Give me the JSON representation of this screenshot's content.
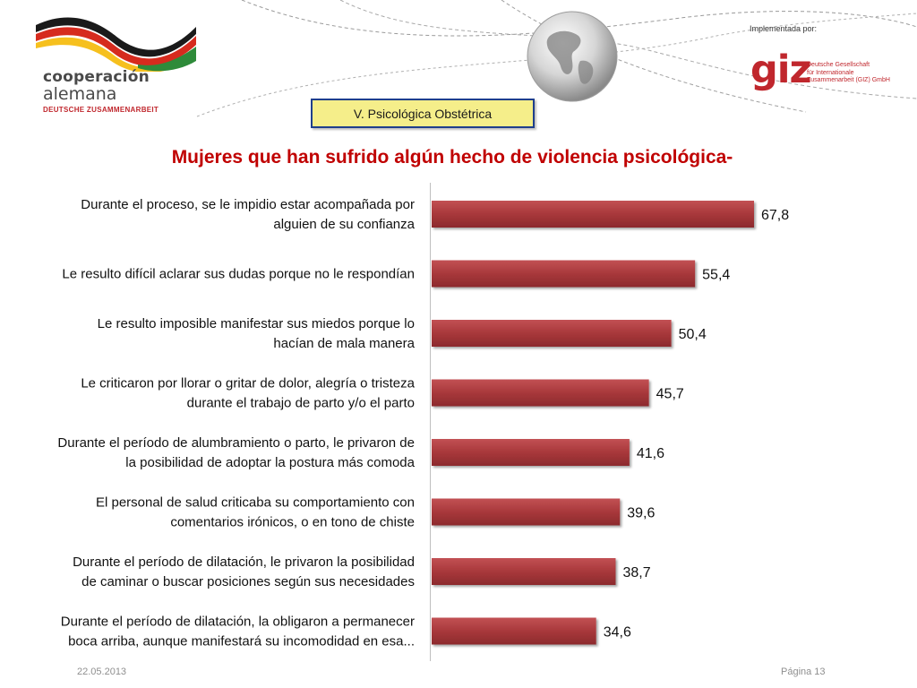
{
  "header": {
    "logo_left": {
      "line1": "cooperación",
      "line2": "alemana",
      "line3": "DEUTSCHE ZUSAMMENARBEIT"
    },
    "implemented_by": "Implementada por:",
    "giz": {
      "mark": "giz",
      "text_lines": [
        "Deutsche Gesellschaft",
        "für Internationale",
        "Zusammenarbeit (GIZ) GmbH"
      ]
    }
  },
  "section_label": "V. Psicológica  Obstétrica",
  "footer": {
    "date": "22.05.2013",
    "page": "Página 13"
  },
  "colors": {
    "bar_fill": "#a8383b",
    "title": "#c00000",
    "section_box_bg": "#f5ee8a",
    "section_box_border": "#1f3f8c",
    "giz_red": "#c0272d"
  },
  "chart_data": {
    "type": "bar",
    "orientation": "horizontal",
    "title": "Mujeres que han sufrido algún hecho de violencia psicológica-",
    "categories": [
      [
        "Durante el proceso, se le impidio estar acompañada por",
        "alguien de su confianza"
      ],
      [
        "Le resulto difícil  aclarar sus dudas porque no le respondían"
      ],
      [
        "Le resulto imposible manifestar sus miedos porque lo",
        "hacían de mala manera"
      ],
      [
        "Le criticaron por llorar o gritar de dolor, alegría o tristeza",
        "durante el trabajo de parto y/o el parto"
      ],
      [
        "Durante el período de alumbramiento o parto, le privaron de",
        "la posibilidad de adoptar la postura más comoda"
      ],
      [
        "El personal de salud criticaba su comportamiento con",
        "comentarios irónicos, o en tono de chiste"
      ],
      [
        "Durante el período de dilatación, le privaron la posibilidad",
        "de caminar o buscar posiciones según sus necesidades"
      ],
      [
        "Durante el período de dilatación, la obligaron a permanecer",
        "boca arriba, aunque manifestará su incomodidad en esa..."
      ]
    ],
    "values": [
      67.8,
      55.4,
      50.4,
      45.7,
      41.6,
      39.6,
      38.7,
      34.6
    ],
    "value_labels": [
      "67,8",
      "55,4",
      "50,4",
      "45,7",
      "41,6",
      "39,6",
      "38,7",
      "34,6"
    ],
    "xlim": [
      0,
      100
    ],
    "grid": false,
    "legend": "none"
  }
}
